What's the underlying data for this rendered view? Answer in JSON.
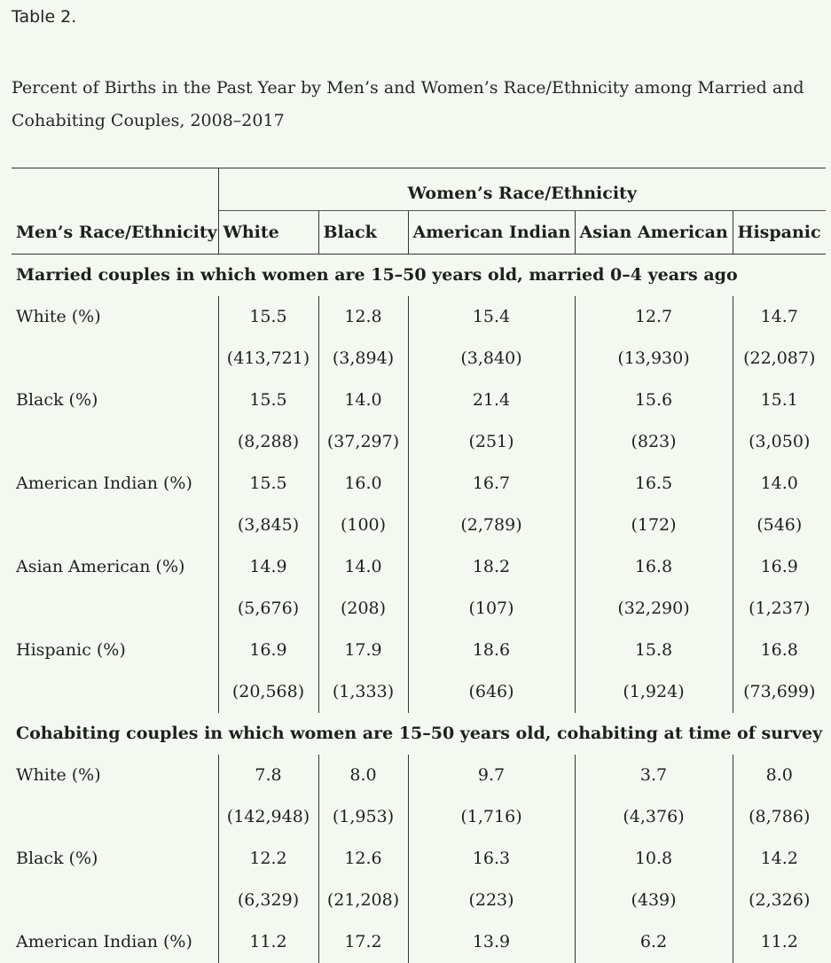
{
  "table_label": "Table 2.",
  "caption": "Percent of Births in the Past Year by Men’s and Women’s Race/Ethnicity among Married and Cohabiting Couples, 2008–2017",
  "header": {
    "group": "Women’s Race/Ethnicity",
    "row_header": "Men’s Race/Ethnicity",
    "columns": [
      "White",
      "Black",
      "American Indian",
      "Asian American",
      "Hispanic"
    ]
  },
  "sections": [
    {
      "title": "Married couples in which women are 15–50 years old, married 0–4 years ago",
      "rows": [
        {
          "label": "White (%)",
          "values": [
            "15.5",
            "12.8",
            "15.4",
            "12.7",
            "14.7"
          ],
          "counts": [
            "(413,721)",
            "(3,894)",
            "(3,840)",
            "(13,930)",
            "(22,087)"
          ]
        },
        {
          "label": "Black (%)",
          "values": [
            "15.5",
            "14.0",
            "21.4",
            "15.6",
            "15.1"
          ],
          "counts": [
            "(8,288)",
            "(37,297)",
            "(251)",
            "(823)",
            "(3,050)"
          ]
        },
        {
          "label": "American Indian (%)",
          "values": [
            "15.5",
            "16.0",
            "16.7",
            "16.5",
            "14.0"
          ],
          "counts": [
            "(3,845)",
            "(100)",
            "(2,789)",
            "(172)",
            "(546)"
          ]
        },
        {
          "label": "Asian American (%)",
          "values": [
            "14.9",
            "14.0",
            "18.2",
            "16.8",
            "16.9"
          ],
          "counts": [
            "(5,676)",
            "(208)",
            "(107)",
            "(32,290)",
            "(1,237)"
          ]
        },
        {
          "label": "Hispanic (%)",
          "values": [
            "16.9",
            "17.9",
            "18.6",
            "15.8",
            "16.8"
          ],
          "counts": [
            "(20,568)",
            "(1,333)",
            "(646)",
            "(1,924)",
            "(73,699)"
          ]
        }
      ]
    },
    {
      "title": "Cohabiting couples in which women are 15–50 years old, cohabiting at time of survey",
      "rows": [
        {
          "label": "White (%)",
          "values": [
            "7.8",
            "8.0",
            "9.7",
            "3.7",
            "8.0"
          ],
          "counts": [
            "(142,948)",
            "(1,953)",
            "(1,716)",
            "(4,376)",
            "(8,786)"
          ]
        },
        {
          "label": "Black (%)",
          "values": [
            "12.2",
            "12.6",
            "16.3",
            "10.8",
            "14.2"
          ],
          "counts": [
            "(6,329)",
            "(21,208)",
            "(223)",
            "(439)",
            "(2,326)"
          ]
        },
        {
          "label": "American Indian (%)",
          "values": [
            "11.2",
            "17.2",
            "13.9",
            "6.2",
            "11.2"
          ],
          "counts": []
        }
      ]
    }
  ]
}
